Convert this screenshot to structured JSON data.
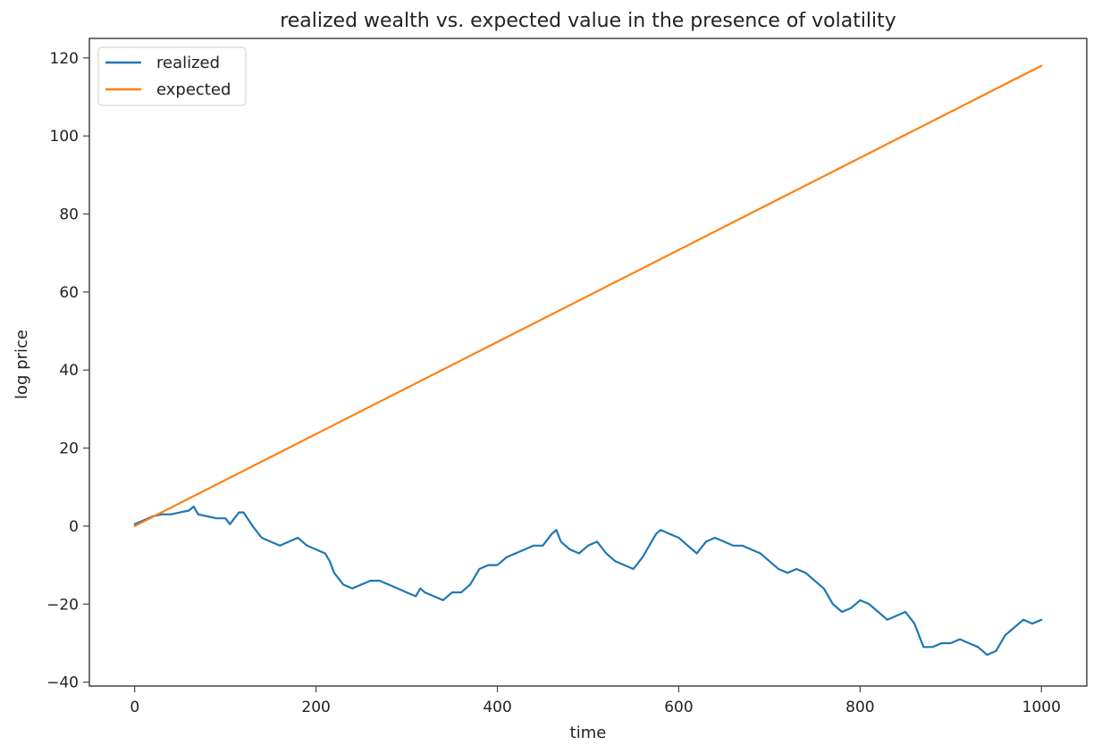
{
  "chart_data": {
    "type": "line",
    "title": "realized wealth vs. expected value in the presence of volatility",
    "xlabel": "time",
    "ylabel": "log price",
    "xlim": [
      -50,
      1050
    ],
    "ylim": [
      -41,
      125
    ],
    "xticks": [
      0,
      200,
      400,
      600,
      800,
      1000
    ],
    "yticks": [
      -40,
      -20,
      0,
      20,
      40,
      60,
      80,
      100,
      120
    ],
    "xtick_labels": [
      "0",
      "200",
      "400",
      "600",
      "800",
      "1000"
    ],
    "ytick_labels": [
      "−40",
      "−20",
      "0",
      "20",
      "40",
      "60",
      "80",
      "100",
      "120"
    ],
    "grid": false,
    "legend": {
      "position": "upper-left",
      "entries": [
        "realized",
        "expected"
      ]
    },
    "series": [
      {
        "name": "realized",
        "color": "#1f77b4",
        "x": [
          0,
          5,
          10,
          20,
          30,
          40,
          50,
          60,
          65,
          70,
          80,
          90,
          100,
          105,
          110,
          115,
          120,
          130,
          140,
          150,
          160,
          170,
          180,
          190,
          200,
          210,
          215,
          220,
          230,
          240,
          250,
          260,
          270,
          280,
          290,
          300,
          310,
          315,
          320,
          330,
          340,
          350,
          360,
          370,
          380,
          390,
          400,
          410,
          420,
          430,
          440,
          450,
          460,
          465,
          470,
          480,
          490,
          500,
          510,
          520,
          530,
          540,
          550,
          560,
          570,
          575,
          580,
          590,
          600,
          610,
          620,
          630,
          640,
          650,
          660,
          670,
          680,
          690,
          700,
          710,
          720,
          730,
          740,
          750,
          760,
          770,
          780,
          790,
          800,
          810,
          820,
          830,
          840,
          850,
          860,
          870,
          880,
          890,
          900,
          910,
          920,
          930,
          940,
          950,
          960,
          970,
          980,
          990,
          1000
        ],
        "y": [
          0.5,
          1,
          1.5,
          2.5,
          3,
          3,
          3.5,
          4,
          5,
          3,
          2.5,
          2,
          2,
          0.5,
          2,
          3.5,
          3.5,
          0,
          -3,
          -4,
          -5,
          -4,
          -3,
          -5,
          -6,
          -7,
          -9,
          -12,
          -15,
          -16,
          -15,
          -14,
          -14,
          -15,
          -16,
          -17,
          -18,
          -16,
          -17,
          -18,
          -19,
          -17,
          -17,
          -15,
          -11,
          -10,
          -10,
          -8,
          -7,
          -6,
          -5,
          -5,
          -2,
          -1,
          -4,
          -6,
          -7,
          -5,
          -4,
          -7,
          -9,
          -10,
          -11,
          -8,
          -4,
          -2,
          -1,
          -2,
          -3,
          -5,
          -7,
          -4,
          -3,
          -4,
          -5,
          -5,
          -6,
          -7,
          -9,
          -11,
          -12,
          -11,
          -12,
          -14,
          -16,
          -20,
          -22,
          -21,
          -19,
          -20,
          -22,
          -24,
          -23,
          -22,
          -25,
          -31,
          -31,
          -30,
          -30,
          -29,
          -30,
          -31,
          -33,
          -32,
          -28,
          -26,
          -24,
          -25,
          -24
        ]
      },
      {
        "name": "expected",
        "color": "#ff7f0e",
        "x": [
          0,
          1000
        ],
        "y": [
          0,
          118
        ]
      }
    ]
  }
}
